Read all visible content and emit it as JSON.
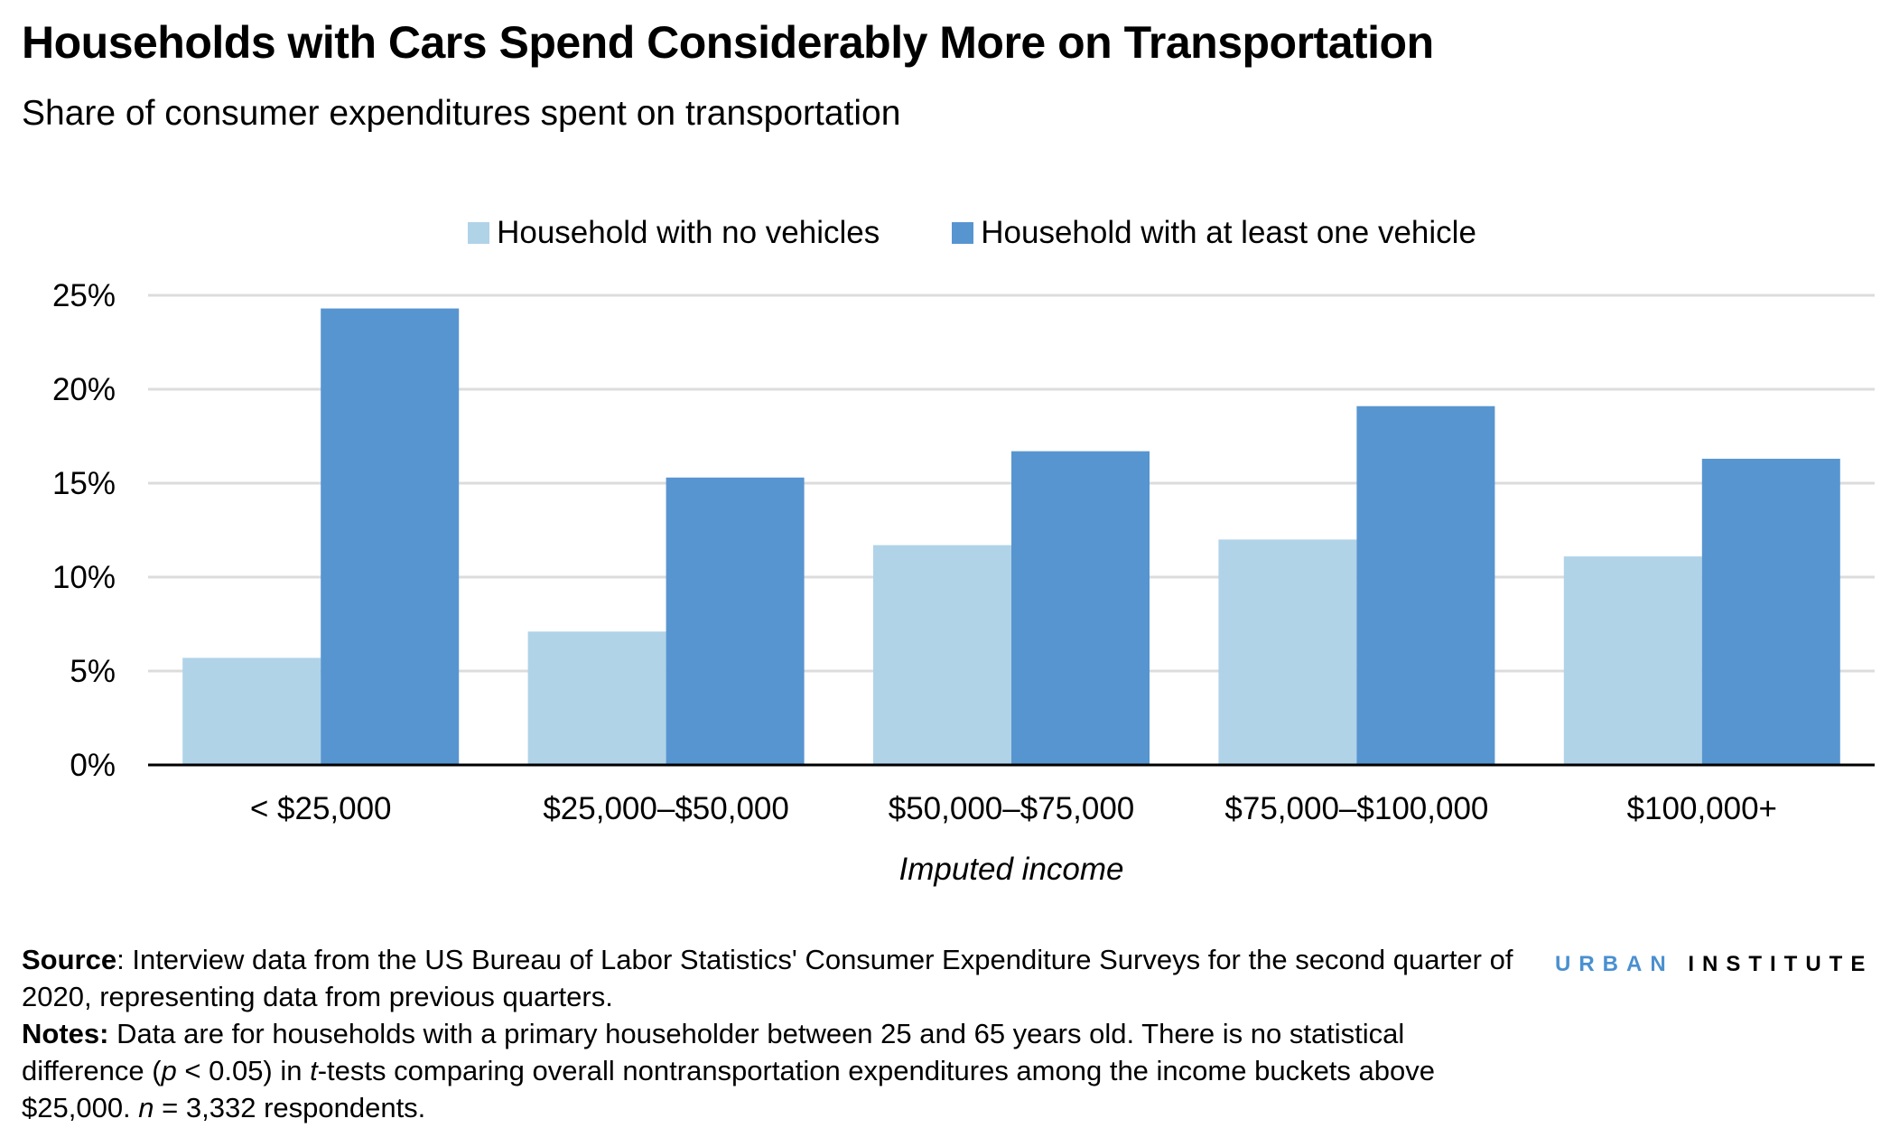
{
  "title": "Households with Cars Spend Considerably More on Transportation",
  "subtitle": "Share of consumer expenditures spent on transportation",
  "colors": {
    "no_vehicle": "#b0d3e8",
    "vehicle": "#5795d0",
    "grid": "#dcdcdc",
    "logo_blue": "#4a90d0"
  },
  "chart_data": {
    "type": "bar",
    "categories": [
      "< $25,000",
      "$25,000–$50,000",
      "$50,000–$75,000",
      "$75,000–$100,000",
      "$100,000+"
    ],
    "series": [
      {
        "name": "Household with no vehicles",
        "values": [
          5.7,
          7.1,
          11.7,
          12.0,
          11.1
        ]
      },
      {
        "name": "Household with at least one vehicle",
        "values": [
          24.3,
          15.3,
          16.7,
          19.1,
          16.3
        ]
      }
    ],
    "xlabel": "Imputed income",
    "ylabel": "",
    "ylim": [
      0,
      25
    ],
    "yticks": [
      0,
      5,
      10,
      15,
      20,
      25
    ],
    "ytick_labels": [
      "0%",
      "5%",
      "10%",
      "15%",
      "20%",
      "25%"
    ],
    "grid": true,
    "legend_position": "top-center"
  },
  "footer": {
    "source_label": "Source",
    "source_text": ": Interview data from the US Bureau of Labor Statistics' Consumer Expenditure Surveys for the second quarter of 2020, representing data from previous quarters.",
    "notes_label": "Notes:",
    "notes_text_1": " Data are for households with a primary householder between 25 and 65 years old. There is no statistical difference (",
    "notes_p": "p",
    "notes_text_2": " < 0.05) in ",
    "notes_t": "t",
    "notes_text_3": "-tests comparing overall nontransportation expenditures among the income buckets above $25,000. ",
    "notes_n": "n",
    "notes_text_4": " = 3,332 respondents."
  },
  "logo": {
    "part1": "URBAN",
    "part2": "INSTITUTE"
  }
}
